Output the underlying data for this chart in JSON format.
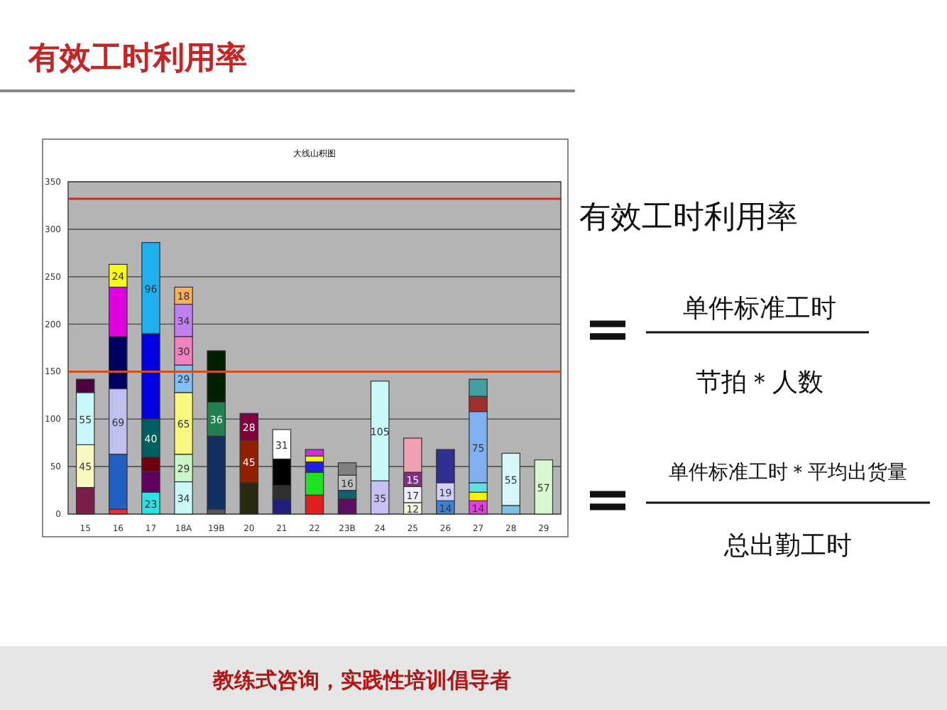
{
  "chart_data": {
    "type": "bar",
    "stacked": true,
    "title": "大线山积图",
    "categories": [
      "15",
      "16",
      "17",
      "18A",
      "19B",
      "20",
      "21",
      "22",
      "23B",
      "24",
      "25",
      "26",
      "27",
      "28",
      "29"
    ],
    "ylim": [
      0,
      350
    ],
    "yticks": [
      0,
      50,
      100,
      150,
      200,
      250,
      300,
      350
    ],
    "grid": "y",
    "series": [
      {
        "colors": [
          "#7a1f4a",
          "#e03030",
          "#30e0e0",
          "#c8f8f8",
          "#555555",
          "#2a2a10",
          "#20207a",
          "#e02020",
          "#5a1060",
          "#c8c0f0",
          "#f8f8e0",
          "#4080d0",
          "#e040e0",
          "#80c0e0",
          "#d8f8d0"
        ],
        "values": [
          28,
          5,
          23,
          34,
          5,
          33,
          16,
          20,
          16,
          35,
          12,
          14,
          14,
          9,
          57
        ],
        "value_labels": [
          null,
          null,
          "23",
          "34",
          null,
          null,
          null,
          null,
          null,
          "35",
          "12",
          "14",
          "14",
          null,
          "57"
        ]
      },
      {
        "colors": [
          "#f8f8c0",
          "#2060c0",
          "#600060",
          "#c8f8c8",
          "#103060",
          "#902000",
          "#303030",
          "#20e020",
          "#106070",
          "#c8f8f8",
          "#f0f0f8",
          "#d0d0f8",
          "#f8f000",
          "#d8f8f8",
          null
        ],
        "values": [
          45,
          58,
          22,
          29,
          77,
          45,
          14,
          24,
          9,
          105,
          17,
          19,
          9,
          55,
          null
        ],
        "value_labels": [
          "45",
          null,
          null,
          "29",
          null,
          "45",
          null,
          null,
          null,
          "105",
          "17",
          "19",
          null,
          "55",
          null
        ]
      },
      {
        "colors": [
          "#c8f8f8",
          "#c0c0f0",
          "#700010",
          "#f8f880",
          "#208050",
          "#800040",
          "#000000",
          "#2020e0",
          "#c0c0c0",
          null,
          "#803080",
          "#303090",
          "#60e0e0",
          null,
          null
        ],
        "values": [
          55,
          69,
          15,
          65,
          36,
          28,
          28,
          11,
          16,
          null,
          15,
          35,
          10,
          null,
          null
        ],
        "value_labels": [
          "55",
          "69",
          null,
          "65",
          "36",
          "28",
          null,
          null,
          "16",
          null,
          "15",
          null,
          null,
          null,
          null
        ]
      },
      {
        "colors": [
          "#500040",
          "#000060",
          "#006060",
          "#80c0f8",
          "#002000",
          null,
          "#ffffff",
          "#f8f800",
          "#808080",
          null,
          "#f0a0b0",
          null,
          "#80b0f0",
          null,
          null
        ],
        "values": [
          14,
          55,
          40,
          29,
          54,
          null,
          31,
          6,
          13,
          null,
          36,
          null,
          75,
          null,
          null
        ],
        "value_labels": [
          null,
          null,
          "40",
          "29",
          null,
          null,
          "31",
          null,
          null,
          null,
          null,
          null,
          "75",
          null,
          null
        ]
      },
      {
        "colors": [
          null,
          "#e000e0",
          "#0000e0",
          "#f080c0",
          null,
          null,
          null,
          "#d030d0",
          null,
          null,
          null,
          null,
          "#a03030",
          null,
          null
        ],
        "values": [
          null,
          52,
          90,
          30,
          null,
          null,
          null,
          7,
          null,
          null,
          null,
          null,
          16,
          null,
          null
        ],
        "value_labels": [
          null,
          null,
          null,
          "30",
          null,
          null,
          null,
          null,
          null,
          null,
          null,
          null,
          null,
          null,
          null
        ]
      },
      {
        "colors": [
          null,
          "#f8f820",
          "#20b0f0",
          "#c080f0",
          null,
          null,
          null,
          null,
          null,
          null,
          null,
          null,
          "#40a0a0",
          null,
          null
        ],
        "values": [
          null,
          24,
          96,
          34,
          null,
          null,
          null,
          null,
          null,
          null,
          null,
          null,
          18,
          null,
          null
        ],
        "value_labels": [
          null,
          "24",
          "96",
          "34",
          null,
          null,
          null,
          null,
          null,
          null,
          null,
          null,
          null,
          null,
          null
        ]
      },
      {
        "colors": [
          null,
          null,
          null,
          "#f8b060",
          null,
          null,
          null,
          null,
          null,
          null,
          null,
          null,
          null,
          null,
          null
        ],
        "values": [
          null,
          null,
          null,
          18,
          null,
          null,
          null,
          null,
          null,
          null,
          null,
          null,
          null,
          null,
          null
        ],
        "value_labels": [
          null,
          null,
          null,
          "18",
          null,
          null,
          null,
          null,
          null,
          null,
          null,
          null,
          null,
          null,
          null
        ]
      }
    ],
    "ref_lines": [
      {
        "axis": "y",
        "value": 332,
        "color": "#e02020"
      },
      {
        "axis": "y",
        "value": 150,
        "color": "#d05020"
      }
    ],
    "annotations": [
      "有效工时利用率",
      "有效工时利用率",
      "=",
      "单件标准工时",
      "节拍＊人数",
      "=",
      "单件标准工时＊平均出货量",
      "总出勤工时",
      "教练式咨询，实践性培训倡导者"
    ]
  }
}
